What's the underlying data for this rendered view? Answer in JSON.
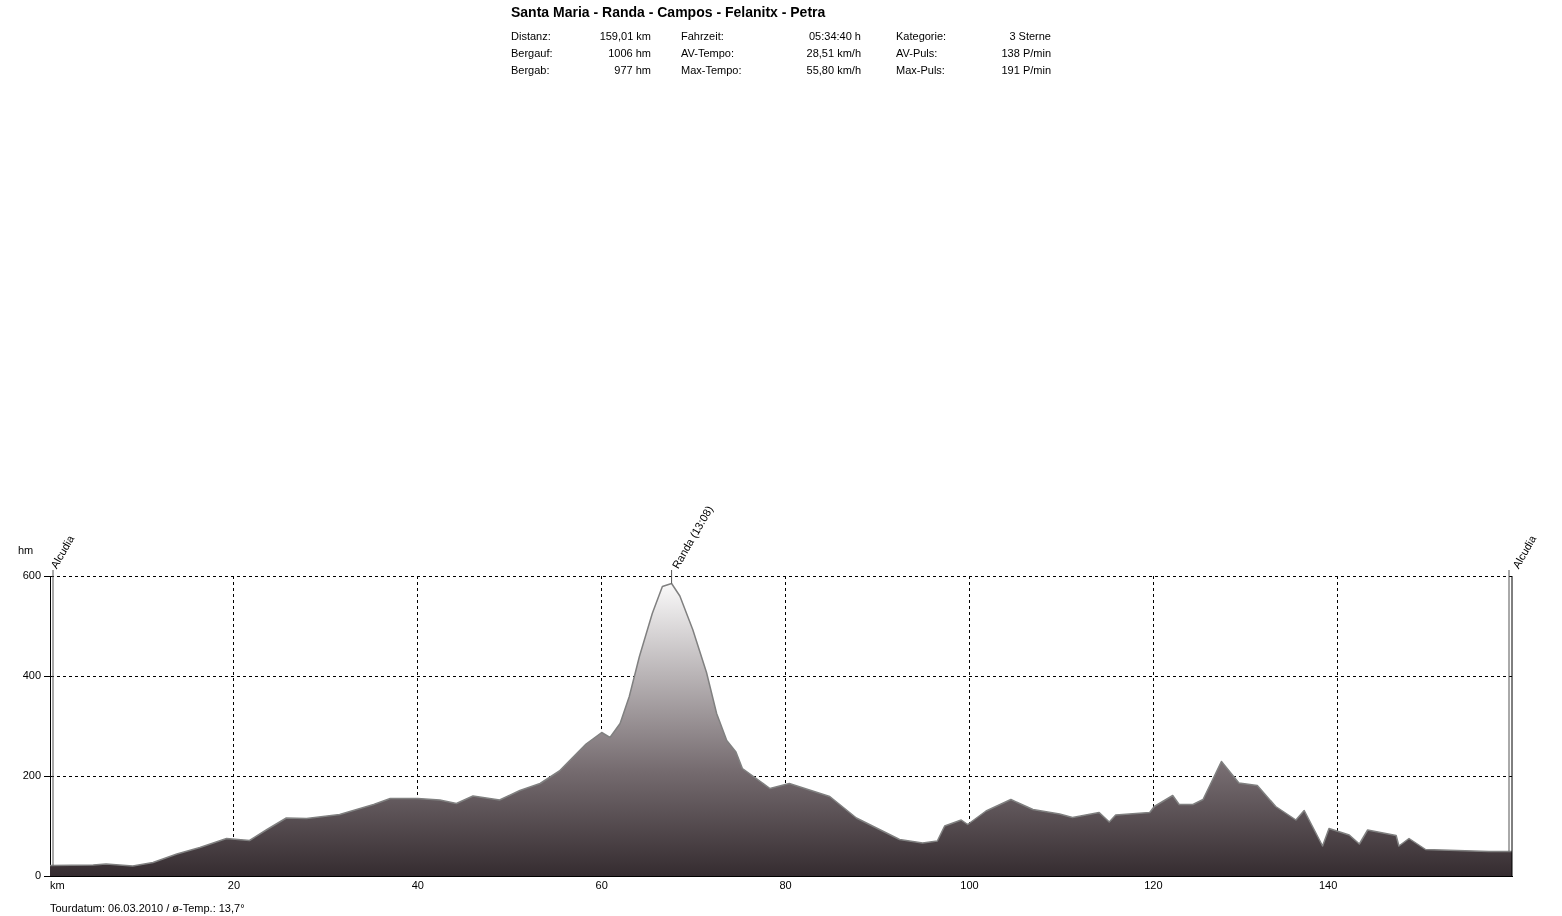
{
  "chart_data": {
    "type": "area",
    "title": "Santa Maria - Randa - Campos - Felanitx - Petra",
    "ylabel": "hm",
    "annotations": [
      "Distanz:",
      "159,01 km",
      "Fahrzeit:",
      "05:34:40 h",
      "Kategorie:",
      "3 Sterne",
      "Bergauf:",
      "1006 hm",
      "AV-Tempo:",
      "28,51 km/h",
      "AV-Puls:",
      "138 P/min",
      "Bergab:",
      "977 hm",
      "Max-Tempo:",
      "55,80 km/h",
      "Max-Puls:",
      "191 P/min",
      "Tourdatum: 06.03.2010  /  ø-Temp.: 13,7°",
      {
        "text": "Alcudia",
        "x": 0,
        "y": 21
      },
      {
        "text": "Randa (13:08)",
        "x": 67.6,
        "y": 585
      },
      {
        "text": "Alcudia",
        "x": 159,
        "y": 49
      }
    ],
    "xlim": [
      0,
      159
    ],
    "xticks": [
      {
        "value": 0,
        "label": "km"
      },
      20,
      40,
      60,
      80,
      100,
      120,
      140
    ],
    "ylim": [
      0,
      600
    ],
    "yticks": [
      0,
      200,
      400,
      600
    ],
    "grid": true,
    "legend": false,
    "series": [
      {
        "color": "#808080",
        "x": [
          0,
          4.7,
          6.1,
          9.0,
          11.2,
          13.8,
          16.3,
          19.2,
          21.7,
          23.6,
          25.7,
          27.9,
          31.5,
          35.2,
          37,
          40,
          42.4,
          44.2,
          46,
          48.9,
          51.1,
          53.3,
          55.4,
          58.3,
          60,
          60.9,
          62,
          63,
          64.1,
          65.5,
          66.6,
          67.6,
          68.5,
          69.9,
          71.4,
          72.5,
          73.6,
          74.6,
          75.3,
          78.3,
          80.4,
          84.8,
          87.7,
          92.4,
          94.9,
          96.5,
          97.3,
          99.1,
          99.8,
          101.8,
          104.5,
          106.9,
          109.8,
          111.2,
          114.1,
          115.2,
          115.9,
          119.6,
          120.1,
          122.1,
          122.8,
          124.3,
          125.4,
          127.4,
          129.3,
          131.3,
          133.3,
          135.5,
          136.4,
          138.4,
          139.1,
          141.3,
          142.4,
          143.3,
          146.4,
          146.7,
          147.8,
          149.6,
          156.5,
          159
        ],
        "values": [
          21,
          22,
          24,
          20,
          27,
          44,
          57,
          75,
          71,
          93,
          116,
          115,
          123,
          143,
          155,
          155,
          152,
          145,
          160,
          152,
          171,
          185,
          210,
          264,
          287,
          277,
          305,
          359,
          439,
          525,
          579,
          585,
          560,
          493,
          407,
          325,
          271,
          248,
          215,
          175,
          185,
          159,
          116,
          73,
          66,
          70,
          100,
          112,
          103,
          130,
          153,
          133,
          124,
          117,
          127,
          108,
          122,
          127,
          139,
          161,
          143,
          143,
          153,
          229,
          186,
          181,
          139,
          112,
          131,
          60,
          95,
          82,
          64,
          92,
          81,
          60,
          75,
          53,
          49,
          49
        ]
      }
    ]
  }
}
